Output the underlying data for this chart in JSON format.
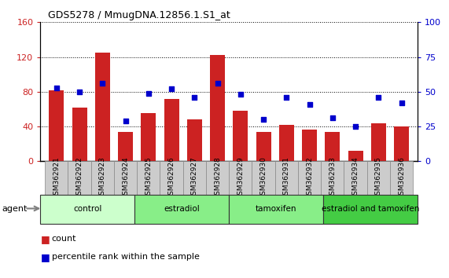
{
  "title": "GDS5278 / MmugDNA.12856.1.S1_at",
  "samples": [
    "GSM362921",
    "GSM362922",
    "GSM362923",
    "GSM362924",
    "GSM362925",
    "GSM362926",
    "GSM362927",
    "GSM362928",
    "GSM362929",
    "GSM362930",
    "GSM362931",
    "GSM362932",
    "GSM362933",
    "GSM362934",
    "GSM362935",
    "GSM362936"
  ],
  "count_values": [
    82,
    62,
    125,
    34,
    55,
    72,
    48,
    122,
    58,
    34,
    42,
    36,
    34,
    12,
    44,
    40
  ],
  "percentile_values": [
    53,
    50,
    56,
    29,
    49,
    52,
    46,
    56,
    48,
    30,
    46,
    41,
    31,
    25,
    46,
    42
  ],
  "bar_color": "#cc2222",
  "dot_color": "#0000cc",
  "ylim_left": [
    0,
    160
  ],
  "ylim_right": [
    0,
    100
  ],
  "yticks_left": [
    0,
    40,
    80,
    120,
    160
  ],
  "yticks_right": [
    0,
    25,
    50,
    75,
    100
  ],
  "group_info": [
    {
      "label": "control",
      "start": 0,
      "end": 4,
      "color": "#ccffcc"
    },
    {
      "label": "estradiol",
      "start": 4,
      "end": 8,
      "color": "#88ee88"
    },
    {
      "label": "tamoxifen",
      "start": 8,
      "end": 12,
      "color": "#88ee88"
    },
    {
      "label": "estradiol and tamoxifen",
      "start": 12,
      "end": 16,
      "color": "#44cc44"
    }
  ],
  "xlabel": "agent",
  "legend_count_label": "count",
  "legend_percentile_label": "percentile rank within the sample",
  "background_color": "#ffffff",
  "tick_label_color_left": "#cc2222",
  "tick_label_color_right": "#0000cc",
  "title_color": "#000000",
  "ticklabel_bg": "#cccccc",
  "title_fontsize": 9,
  "bar_fontsize": 6.5
}
